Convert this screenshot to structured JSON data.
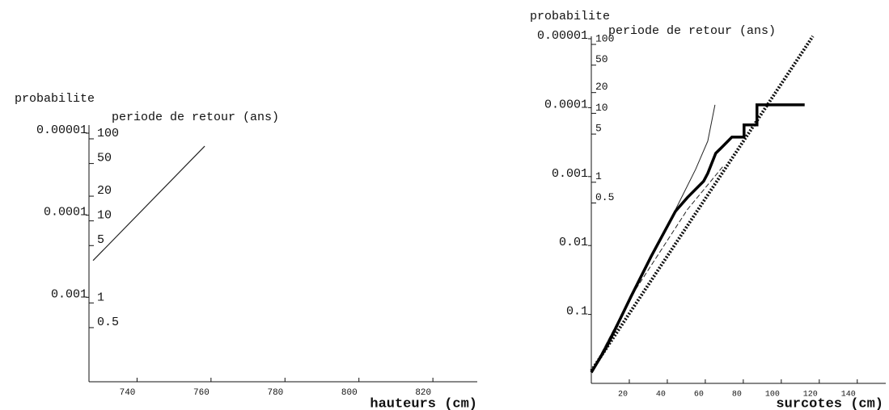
{
  "chart_data": [
    {
      "type": "line",
      "ylabel": "probabilite",
      "y2label": "periode de retour (ans)",
      "xlabel": "hauteurs (cm)",
      "xlim": [
        727,
        832
      ],
      "xticks": [
        740,
        760,
        780,
        800,
        820
      ],
      "ylim": [
        0.01,
        1e-05
      ],
      "yticks": [
        1e-05,
        0.0001,
        0.001
      ],
      "ylog": true,
      "y2lim": [
        0.1,
        100
      ],
      "y2ticks": [
        100,
        50,
        20,
        10,
        5,
        1,
        0.5
      ],
      "y2log": true,
      "series": [
        {
          "color": "#222222",
          "width": 1.2,
          "dash": "none",
          "x": [
            728.1,
            758.3
          ],
          "values": [
            0.000357,
            1.44e-05
          ]
        }
      ]
    },
    {
      "type": "line",
      "ylabel": "probabilite",
      "y2label": "periode de retour (ans)",
      "xlabel": "surcotes (cm)",
      "xlim": [
        0,
        155
      ],
      "xticks": [
        20,
        40,
        60,
        80,
        100,
        120,
        140
      ],
      "ylim": [
        1,
        1e-05
      ],
      "yticks": [
        1e-05,
        0.0001,
        0.001,
        0.01,
        0.1
      ],
      "ylog": true,
      "y2lim": [
        0.001,
        100
      ],
      "y2ticks": [
        100,
        50,
        20,
        10,
        5,
        1,
        0.5
      ],
      "y2log": true,
      "series": [
        {
          "color": "#222222",
          "width": 1,
          "dash": "none",
          "x": [
            0,
            29.4,
            46.4,
            54.9,
            61.3,
            65.1
          ],
          "values": [
            0.695,
            0.0199,
            0.00231,
            0.000785,
            0.000306,
            9.1e-05
          ]
        },
        {
          "color": "#222222",
          "width": 1,
          "dash": "6 3",
          "x": [
            0,
            20.9,
            50.6,
            69.8
          ],
          "values": [
            0.695,
            0.055,
            0.003,
            0.000686
          ]
        },
        {
          "color": "#111111",
          "width": 4,
          "dash": "2 2",
          "x": [
            0,
            116.6
          ],
          "values": [
            0.66,
            9.2e-06
          ]
        },
        {
          "color": "#000000",
          "width": 3.5,
          "dash": "none",
          "x": [
            0,
            8.1,
            20.9,
            31.5,
            44.3,
            50.6,
            59.1,
            61.3,
            65.5,
            67.7,
            69.8,
            71.9,
            74.0,
            80.4,
            80.4,
            87.2,
            87.2,
            112.3
          ],
          "values": [
            0.695,
            0.294,
            0.055,
            0.0144,
            0.00318,
            0.00201,
            0.00117,
            0.000898,
            0.000458,
            0.0004,
            0.00035,
            0.000306,
            0.000267,
            0.000267,
            0.000178,
            0.000178,
            9.1e-05,
            9.1e-05
          ]
        }
      ]
    }
  ]
}
